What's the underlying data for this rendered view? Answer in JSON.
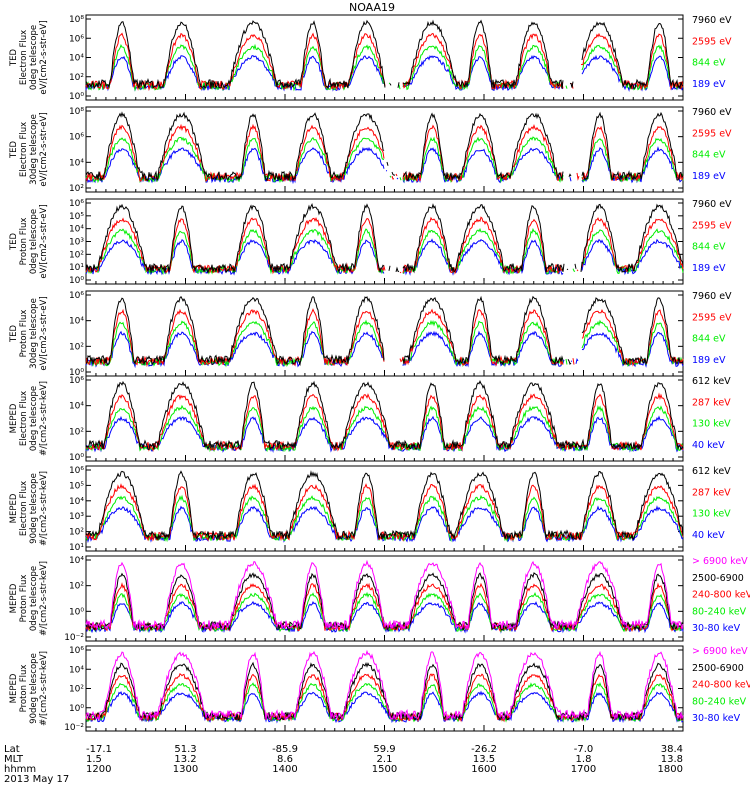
{
  "title": "NOAA19",
  "date_label": "2013 May 17",
  "colors": {
    "black": "#000000",
    "red": "#ff0000",
    "green": "#00ee00",
    "blue": "#0000ff",
    "magenta": "#ff00ff"
  },
  "footer": {
    "row_labels": [
      "Lat",
      "MLT",
      "hhmm"
    ],
    "lat": [
      "-17.1",
      "51.3",
      "-85.9",
      "59.9",
      "-26.2",
      "-7.0",
      "38.4"
    ],
    "mlt": [
      "1.5",
      "13.2",
      "8.6",
      "2.1",
      "13.5",
      "1.8",
      "13.8"
    ],
    "hhmm": [
      "1200",
      "1300",
      "1400",
      "1500",
      "1600",
      "1700",
      "1800"
    ]
  },
  "chart_data": [
    {
      "type": "line",
      "ylabel": [
        "TED",
        "Electron Flux",
        "0deg telescope",
        "eV/[cm2-s-str-eV]"
      ],
      "yticks": [
        "10⁰",
        "10²",
        "10⁴",
        "10⁶",
        "10⁸"
      ],
      "ylog": [
        0,
        8
      ],
      "series": [
        {
          "name": "7960 eV",
          "color": "black"
        },
        {
          "name": "2595 eV",
          "color": "red"
        },
        {
          "name": "844 eV",
          "color": "green"
        },
        {
          "name": "189 eV",
          "color": "blue"
        }
      ]
    },
    {
      "type": "line",
      "ylabel": [
        "TED",
        "Electron Flux",
        "30deg telescope",
        "eV/[cm2-s-str-eV]"
      ],
      "yticks": [
        "10²",
        "10⁴",
        "10⁶",
        "10⁸"
      ],
      "ylog": [
        1,
        9
      ],
      "series": [
        {
          "name": "7960 eV",
          "color": "black"
        },
        {
          "name": "2595 eV",
          "color": "red"
        },
        {
          "name": "844 eV",
          "color": "green"
        },
        {
          "name": "189 eV",
          "color": "blue"
        }
      ]
    },
    {
      "type": "line",
      "ylabel": [
        "TED",
        "Proton Flux",
        "0deg telescope",
        "eV/[cm2-s-str-eV]"
      ],
      "yticks": [
        "10⁰",
        "10¹",
        "10²",
        "10³",
        "10⁴",
        "10⁵",
        "10⁶"
      ],
      "ylog": [
        0,
        6
      ],
      "series": [
        {
          "name": "7960 eV",
          "color": "black"
        },
        {
          "name": "2595 eV",
          "color": "red"
        },
        {
          "name": "844 eV",
          "color": "green"
        },
        {
          "name": "189 eV",
          "color": "blue"
        }
      ]
    },
    {
      "type": "line",
      "ylabel": [
        "TED",
        "Proton Flux",
        "30deg telescope",
        "eV/[cm2-s-str-eV]"
      ],
      "yticks": [
        "10⁰",
        "10²",
        "10⁴",
        "10⁶"
      ],
      "ylog": [
        0,
        6
      ],
      "series": [
        {
          "name": "7960 eV",
          "color": "black"
        },
        {
          "name": "2595 eV",
          "color": "red"
        },
        {
          "name": "844 eV",
          "color": "green"
        },
        {
          "name": "189 eV",
          "color": "blue"
        }
      ]
    },
    {
      "type": "line",
      "ylabel": [
        "MEPED",
        "Electron Flux",
        "0deg telescope",
        "#/[cm2-s-str-keV]"
      ],
      "yticks": [
        "10⁰",
        "10²",
        "10⁴",
        "10⁶"
      ],
      "ylog": [
        0,
        7
      ],
      "series": [
        {
          "name": "612 keV",
          "color": "black"
        },
        {
          "name": "287 keV",
          "color": "red"
        },
        {
          "name": "130 keV",
          "color": "green"
        },
        {
          "name": "40 keV",
          "color": "blue"
        }
      ]
    },
    {
      "type": "line",
      "ylabel": [
        "MEPED",
        "Electron Flux",
        "90deg telescope",
        "#/[cm2-s-str-keV]"
      ],
      "yticks": [
        "10¹",
        "10²",
        "10³",
        "10⁴",
        "10⁵",
        "10⁶"
      ],
      "ylog": [
        1,
        6
      ],
      "series": [
        {
          "name": "612 keV",
          "color": "black"
        },
        {
          "name": "287 keV",
          "color": "red"
        },
        {
          "name": "130 keV",
          "color": "green"
        },
        {
          "name": "40 keV",
          "color": "blue"
        }
      ]
    },
    {
      "type": "line",
      "ylabel": [
        "MEPED",
        "Proton Flux",
        "0deg telescope",
        "#/[cm2-s-str-keV]"
      ],
      "yticks": [
        "10⁻²",
        "10⁰",
        "10²",
        "10⁴"
      ],
      "ylog": [
        -2.5,
        5
      ],
      "series": [
        {
          "name": "> 6900 keV",
          "color": "magenta"
        },
        {
          "name": "2500-6900",
          "color": "black"
        },
        {
          "name": "240-800 keV",
          "color": "red"
        },
        {
          "name": "80-240 keV",
          "color": "green"
        },
        {
          "name": "30-80 keV",
          "color": "blue"
        }
      ]
    },
    {
      "type": "line",
      "ylabel": [
        "MEPED",
        "Proton Flux",
        "90deg telescope",
        "#/[cm2-s-str-keV]"
      ],
      "yticks": [
        "10⁻²",
        "10⁰",
        "10²",
        "10⁴",
        "10⁶"
      ],
      "ylog": [
        -3,
        6
      ],
      "series": [
        {
          "name": "> 6900 keV",
          "color": "magenta"
        },
        {
          "name": "2500-6900",
          "color": "black"
        },
        {
          "name": "240-800 keV",
          "color": "red"
        },
        {
          "name": "80-240 keV",
          "color": "green"
        },
        {
          "name": "30-80 keV",
          "color": "blue"
        }
      ]
    }
  ]
}
